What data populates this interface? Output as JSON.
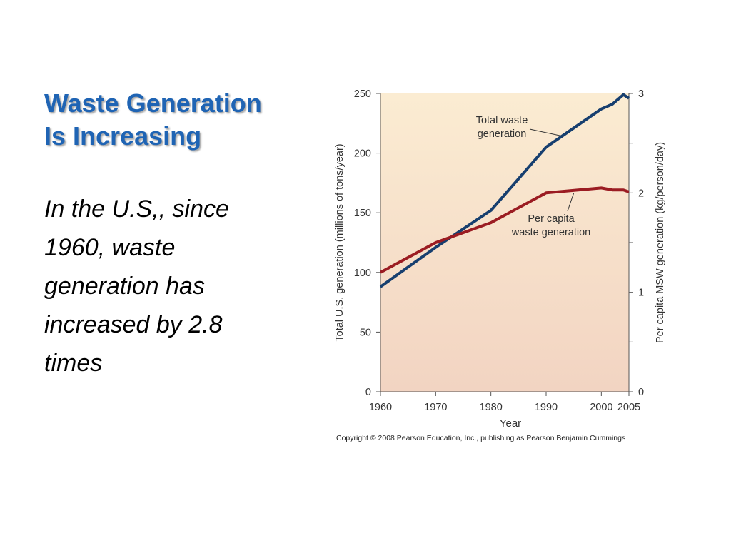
{
  "slide": {
    "title_line1": "Waste Generation",
    "title_line2": "Is Increasing",
    "body": "In the U.S,, since 1960, waste generation has increased by 2.8 times"
  },
  "colors": {
    "title": "#1f64b4",
    "total_series": "#173f6f",
    "per_capita_series": "#9b1c22",
    "plot_bg_top": "#fbecd2",
    "plot_bg_bottom": "#f2d4c2"
  },
  "chart_data": {
    "type": "line",
    "xlabel": "Year",
    "ylabel": "Total U.S. generation (millions of tons/year)",
    "y2label": "Per capita MSW generation (kg/person/day)",
    "xlim": [
      1960,
      2005
    ],
    "ylim": [
      0,
      250
    ],
    "y2lim": [
      0,
      3
    ],
    "x_ticks": [
      1960,
      1970,
      1980,
      1990,
      2000,
      2005
    ],
    "y_ticks": [
      0,
      50,
      100,
      150,
      200,
      250
    ],
    "y2_ticks": [
      0,
      1,
      2,
      3
    ],
    "y2_minor_ticks": [
      0.5,
      1.5,
      2.5
    ],
    "grid": false,
    "series": [
      {
        "name": "Total waste generation",
        "axis": "left",
        "x": [
          1960,
          1970,
          1980,
          1990,
          2000,
          2002,
          2004,
          2005
        ],
        "y": [
          88,
          121,
          152,
          205,
          237,
          241,
          249,
          246
        ]
      },
      {
        "name": "Per capita waste generation",
        "axis": "right",
        "x": [
          1960,
          1970,
          1980,
          1990,
          2000,
          2002,
          2004,
          2005
        ],
        "y": [
          1.2,
          1.5,
          1.7,
          2.0,
          2.05,
          2.03,
          2.03,
          2.01
        ]
      }
    ],
    "annotations": [
      {
        "lines": [
          "Total waste",
          "generation"
        ]
      },
      {
        "lines": [
          "Per capita",
          "waste generation"
        ]
      }
    ],
    "footer": "Copyright © 2008 Pearson Education, Inc., publishing as Pearson Benjamin Cummings"
  }
}
